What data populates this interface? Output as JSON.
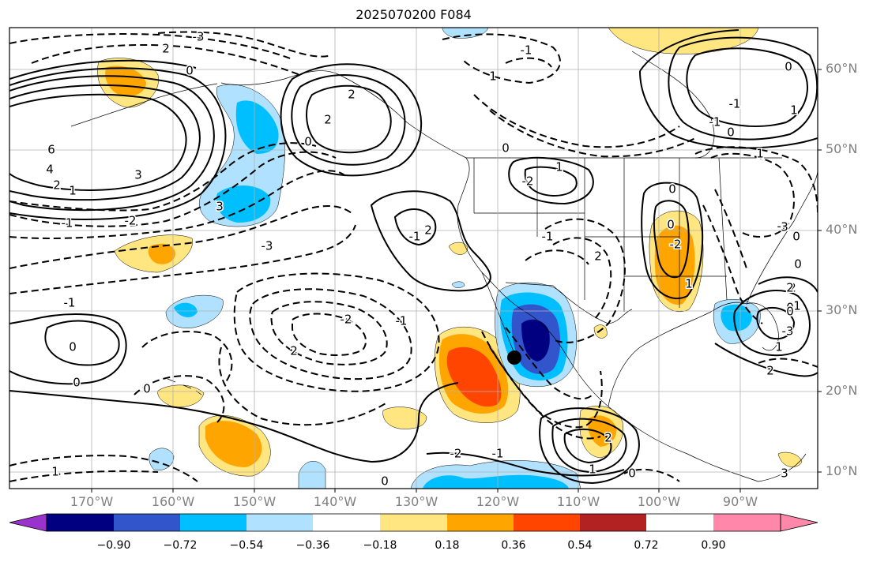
{
  "title": "2025070200 F084",
  "lat_labels": [
    "60°N",
    "50°N",
    "40°N",
    "30°N",
    "20°N",
    "10°N"
  ],
  "lon_labels": [
    "170°W",
    "160°W",
    "150°W",
    "140°W",
    "130°W",
    "120°W",
    "110°W",
    "100°W",
    "90°W"
  ],
  "colorbar": {
    "ticks": [
      "−0.90",
      "−0.72",
      "−0.54",
      "−0.36",
      "−0.18",
      "0.18",
      "0.36",
      "0.54",
      "0.72",
      "0.90"
    ],
    "colors": [
      "#9933cc",
      "#000080",
      "#3355cc",
      "#00bfff",
      "#b0e2ff",
      "#ffffff",
      "#ffe680",
      "#ffa500",
      "#ff4500",
      "#b22222",
      "#ff88aa"
    ]
  },
  "contour_labels": [
    "-3",
    "2",
    "0",
    "6",
    "4",
    "3",
    "2",
    "1",
    "-1",
    "-2",
    "2",
    "0",
    "2",
    "3",
    "-1",
    "-2",
    "2",
    "-1",
    "-3",
    "1",
    "-1",
    "0",
    "-2",
    "1",
    "2",
    "-1",
    "-2",
    "1",
    "0",
    "0",
    "-1",
    "0",
    "0",
    "-1",
    "1",
    "2",
    "-1",
    "1",
    "0",
    "-2",
    "2",
    "0",
    "3",
    "2",
    "1",
    "-3",
    "-2",
    "0",
    "0",
    "0",
    "1",
    "0",
    "1",
    "0",
    "2",
    "1",
    "3",
    "-1",
    "0",
    "2",
    "0"
  ]
}
